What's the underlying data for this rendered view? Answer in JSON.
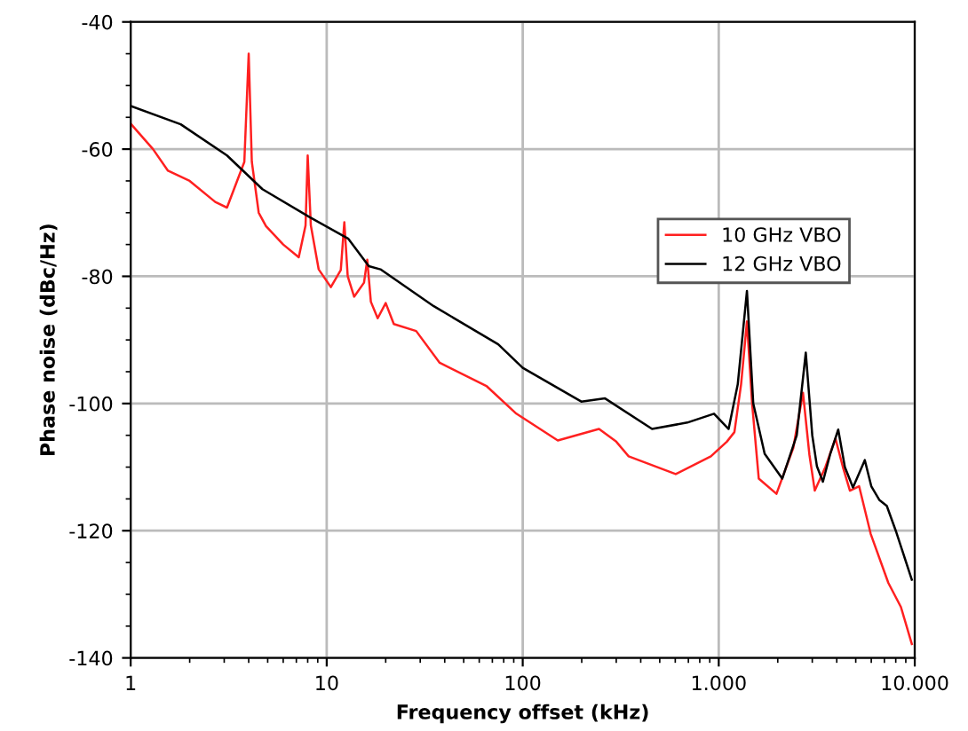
{
  "chart_data": {
    "type": "line",
    "xlabel": "Frequency offset (kHz)",
    "ylabel": "Phase noise (dBc/Hz)",
    "log": "x",
    "xlim": [
      1,
      10000
    ],
    "ylim": [
      -140,
      -40
    ],
    "xticks": [
      1,
      10,
      100,
      {
        "value": 1000,
        "label": "1.000"
      },
      {
        "value": 10000,
        "label": "10.000"
      }
    ],
    "yticks": [
      -140,
      -120,
      -100,
      -80,
      -60,
      -40
    ],
    "grid": true,
    "legend": "right",
    "marker": "none",
    "line_style": "solid",
    "series": [
      {
        "name": "10 GHz VBO",
        "color": "#ff2020",
        "x": [
          1,
          1.3,
          1.55,
          2,
          2.7,
          3.1,
          3.8,
          4.0,
          4.15,
          4.5,
          4.9,
          6,
          7.2,
          7.8,
          8.0,
          8.3,
          9.1,
          10.5,
          11.8,
          12.3,
          12.8,
          13.8,
          15.5,
          16.1,
          16.8,
          18.2,
          20,
          22,
          28.6,
          37.7,
          65.6,
          92.8,
          151,
          245,
          300,
          347,
          603,
          912,
          1100,
          1202,
          1300,
          1393,
          1480,
          1600,
          1970,
          2400,
          2690,
          2900,
          3090,
          3500,
          3940,
          4300,
          4670,
          5200,
          5960,
          7330,
          8500,
          9660
        ],
        "values": [
          -56,
          -60,
          -63.4,
          -65,
          -68.3,
          -69.2,
          -62,
          -45,
          -62,
          -70,
          -72.1,
          -75,
          -77,
          -72,
          -61,
          -72,
          -78.9,
          -81.7,
          -79,
          -71.5,
          -80,
          -83.2,
          -81,
          -77.4,
          -84,
          -86.6,
          -84.2,
          -87.5,
          -88.6,
          -93.6,
          -97.3,
          -101.6,
          -105.8,
          -104,
          -106,
          -108.3,
          -111.1,
          -108.3,
          -106,
          -104.5,
          -97,
          -87.1,
          -100,
          -111.8,
          -114.2,
          -107,
          -98.3,
          -108,
          -113.7,
          -110,
          -105.5,
          -110,
          -113.7,
          -113,
          -120.5,
          -128.2,
          -132,
          -137.8
        ]
      },
      {
        "name": "12 GHz VBO",
        "color": "#000000",
        "x": [
          1,
          1.8,
          3.1,
          4.7,
          8.2,
          12.9,
          16.4,
          18.8,
          35.2,
          75,
          100,
          199,
          263,
          457,
          691,
          946,
          1123,
          1250,
          1393,
          1500,
          1715,
          2110,
          2500,
          2780,
          3000,
          3170,
          3400,
          3700,
          4070,
          4400,
          4840,
          5560,
          6000,
          6610,
          7200,
          8000,
          9660
        ],
        "values": [
          -53.2,
          -56.1,
          -61,
          -66.3,
          -70.7,
          -74.1,
          -78.4,
          -78.9,
          -84.7,
          -90.7,
          -94.4,
          -99.7,
          -99.2,
          -104,
          -103,
          -101.6,
          -104,
          -97,
          -82.3,
          -100,
          -107.9,
          -111.8,
          -105,
          -92,
          -105,
          -109.9,
          -112.3,
          -108,
          -104.1,
          -110,
          -113.2,
          -108.9,
          -113,
          -115.2,
          -116.1,
          -120,
          -127.7
        ]
      }
    ]
  }
}
